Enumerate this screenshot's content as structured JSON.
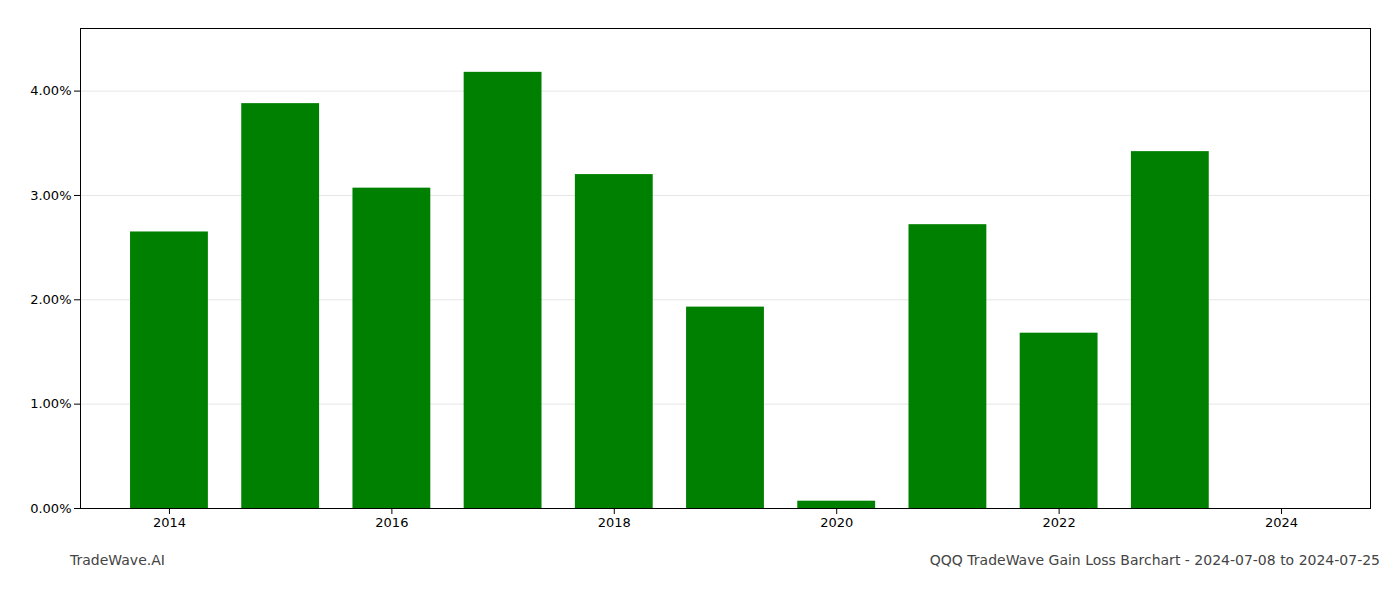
{
  "chart_data": {
    "type": "bar",
    "title": "QQQ TradeWave Gain Loss Barchart - 2024-07-08 to 2024-07-25",
    "annotations": [
      "TradeWave.AI"
    ],
    "x": [
      2014,
      2015,
      2016,
      2017,
      2018,
      2019,
      2020,
      2021,
      2022,
      2023
    ],
    "values": [
      0.0265,
      0.0388,
      0.0307,
      0.0418,
      0.032,
      0.0193,
      0.0007,
      0.0272,
      0.0168,
      0.0342
    ],
    "color": "#008000",
    "xlim": [
      2013.2,
      2024.8
    ],
    "xticks": [
      2014,
      2016,
      2018,
      2020,
      2022,
      2024
    ],
    "ylim": [
      0,
      0.046
    ],
    "yticks": [
      {
        "value": 0.0,
        "label": "0.00%"
      },
      {
        "value": 0.01,
        "label": "1.00%"
      },
      {
        "value": 0.02,
        "label": "2.00%"
      },
      {
        "value": 0.03,
        "label": "3.00%"
      },
      {
        "value": 0.04,
        "label": "4.00%"
      }
    ],
    "grid": true
  }
}
